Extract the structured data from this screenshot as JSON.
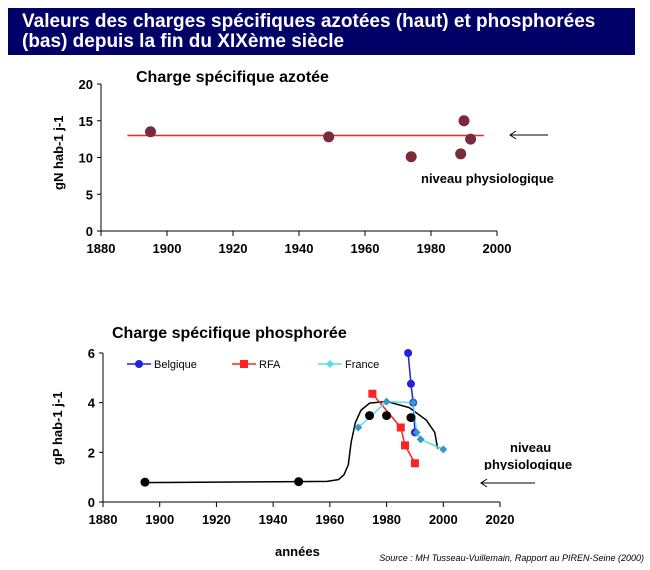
{
  "title": "Valeurs des charges spécifiques azotées (haut) et phosphorées (bas) depuis la fin du XIXème siècle",
  "source": "Source : MH Tusseau-Vuillemain, Rapport au PIREN-Seine (2000)",
  "chart_data": [
    {
      "type": "scatter",
      "title": "Charge spécifique azotée",
      "xlabel": "",
      "ylabel": "gN hab-1 j-1",
      "xlim": [
        1880,
        2000
      ],
      "ylim": [
        0,
        20
      ],
      "xticks": [
        1880,
        1900,
        1920,
        1940,
        1960,
        1980,
        2000
      ],
      "yticks": [
        0,
        5,
        10,
        15,
        20
      ],
      "points": {
        "x": [
          1895,
          1949,
          1974,
          1989,
          1990,
          1992
        ],
        "y": [
          13.5,
          12.8,
          10.1,
          10.5,
          15,
          12.5
        ],
        "color": "#7b2a3c"
      },
      "reference_line": {
        "y": 13,
        "x": [
          1888,
          1996
        ],
        "color": "#ff2020"
      },
      "annotation": "niveau physiologique"
    },
    {
      "type": "line",
      "title": "Charge spécifique phosphorée",
      "xlabel": "années",
      "ylabel": "gP hab-1 j-1",
      "xlim": [
        1880,
        2020
      ],
      "ylim": [
        0,
        6
      ],
      "xticks": [
        1880,
        1900,
        1920,
        1940,
        1960,
        1980,
        2000,
        2020
      ],
      "yticks": [
        0,
        2,
        4,
        6
      ],
      "series": [
        {
          "name": "Belgique",
          "color": "#2222dd",
          "marker": "circle",
          "x": [
            1987.6,
            1988.6,
            1989.4,
            1990
          ],
          "y": [
            6,
            4.76,
            4,
            2.8
          ]
        },
        {
          "name": "RFA",
          "color": "#ff2222",
          "marker": "square",
          "x": [
            1975,
            1985,
            1986.5,
            1990
          ],
          "y": [
            4.36,
            3.0,
            2.28,
            1.56
          ]
        },
        {
          "name": "France",
          "color": "#55ddee",
          "marker": "diamond",
          "x": [
            1970,
            1980,
            1989.4,
            1990.6,
            1992,
            2000
          ],
          "y": [
            3.0,
            4.04,
            4.0,
            2.8,
            2.52,
            2.12
          ]
        }
      ],
      "points": {
        "x": [
          1894.8,
          1949,
          1974,
          1980,
          1988.6
        ],
        "y": [
          0.8,
          0.82,
          3.48,
          3.48,
          3.4
        ],
        "color": "#000000"
      },
      "trend": {
        "x": [
          1894,
          1949,
          1959,
          1963,
          1965,
          1966.5,
          1967.5,
          1969,
          1971,
          1974,
          1980,
          1988,
          1994,
          1997,
          1998
        ],
        "y": [
          0.78,
          0.82,
          0.83,
          0.9,
          1.1,
          1.5,
          2.4,
          3.2,
          3.7,
          3.98,
          4.05,
          3.8,
          3.3,
          2.8,
          2.15
        ]
      },
      "annotation": "niveau physiologique"
    }
  ]
}
